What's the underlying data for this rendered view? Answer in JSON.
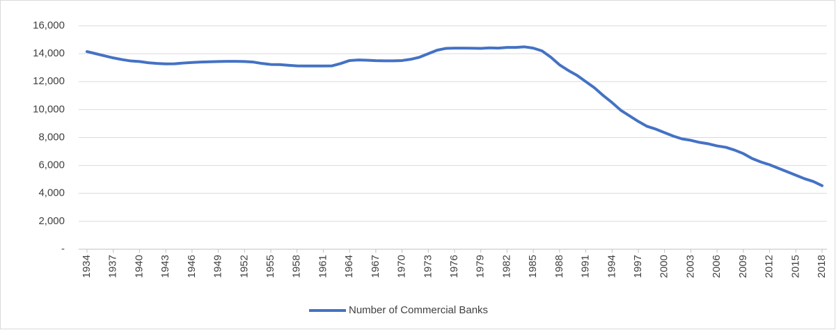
{
  "chart_data": {
    "type": "line",
    "x": [
      1934,
      1935,
      1936,
      1937,
      1938,
      1939,
      1940,
      1941,
      1942,
      1943,
      1944,
      1945,
      1946,
      1947,
      1948,
      1949,
      1950,
      1951,
      1952,
      1953,
      1954,
      1955,
      1956,
      1957,
      1958,
      1959,
      1960,
      1961,
      1962,
      1963,
      1964,
      1965,
      1966,
      1967,
      1968,
      1969,
      1970,
      1971,
      1972,
      1973,
      1974,
      1975,
      1976,
      1977,
      1978,
      1979,
      1980,
      1981,
      1982,
      1983,
      1984,
      1985,
      1986,
      1987,
      1988,
      1989,
      1990,
      1991,
      1992,
      1993,
      1994,
      1995,
      1996,
      1997,
      1998,
      1999,
      2000,
      2001,
      2002,
      2003,
      2004,
      2005,
      2006,
      2007,
      2008,
      2009,
      2010,
      2011,
      2012,
      2013,
      2014,
      2015,
      2016,
      2017,
      2018
    ],
    "series": [
      {
        "name": "Number of Commercial Banks",
        "color": "#4472c4",
        "values": [
          14150,
          14000,
          13850,
          13700,
          13580,
          13480,
          13440,
          13350,
          13300,
          13270,
          13280,
          13330,
          13370,
          13400,
          13420,
          13440,
          13450,
          13450,
          13440,
          13400,
          13300,
          13230,
          13220,
          13170,
          13130,
          13120,
          13120,
          13120,
          13130,
          13300,
          13510,
          13550,
          13530,
          13500,
          13490,
          13490,
          13510,
          13600,
          13750,
          14000,
          14250,
          14380,
          14400,
          14400,
          14390,
          14380,
          14420,
          14400,
          14450,
          14450,
          14490,
          14400,
          14200,
          13750,
          13200,
          12800,
          12450,
          12000,
          11550,
          11000,
          10500,
          9950,
          9550,
          9150,
          8800,
          8600,
          8350,
          8100,
          7900,
          7800,
          7650,
          7550,
          7400,
          7300,
          7100,
          6850,
          6500,
          6250,
          6050,
          5800,
          5550,
          5300,
          5050,
          4850,
          4550
        ]
      }
    ],
    "xlim": [
      1934,
      2018
    ],
    "xticks": [
      1934,
      1937,
      1940,
      1943,
      1946,
      1949,
      1952,
      1955,
      1958,
      1961,
      1964,
      1967,
      1970,
      1973,
      1976,
      1979,
      1982,
      1985,
      1988,
      1991,
      1994,
      1997,
      2000,
      2003,
      2006,
      2009,
      2012,
      2015,
      2018
    ],
    "ylim": [
      0,
      16000
    ],
    "yticks": [
      {
        "value": 0,
        "label": "-"
      },
      {
        "value": 2000,
        "label": "2,000"
      },
      {
        "value": 4000,
        "label": "4,000"
      },
      {
        "value": 6000,
        "label": "6,000"
      },
      {
        "value": 8000,
        "label": "8,000"
      },
      {
        "value": 10000,
        "label": "10,000"
      },
      {
        "value": 12000,
        "label": "12,000"
      },
      {
        "value": 14000,
        "label": "14,000"
      },
      {
        "value": 16000,
        "label": "16,000"
      }
    ],
    "grid": true,
    "legend": "bottom"
  }
}
